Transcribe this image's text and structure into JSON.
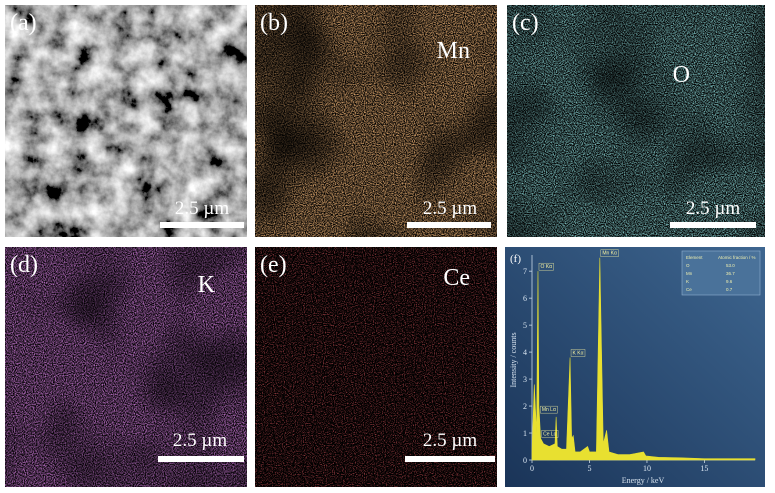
{
  "panels": [
    {
      "label": "(a)",
      "scale_bar": "2.5 µm"
    },
    {
      "label": "(b)",
      "element": "Mn",
      "scale_bar": "2.5 µm"
    },
    {
      "label": "(c)",
      "element": "O",
      "scale_bar": "2.5 µm"
    },
    {
      "label": "(d)",
      "element": "K",
      "scale_bar": "2.5 µm"
    },
    {
      "label": "(e)",
      "element": "Ce",
      "scale_bar": "2.5 µm"
    }
  ],
  "chart_data": {
    "type": "area",
    "label": "(f)",
    "x_label": "Energy / keV",
    "y_label": "Intensity / counts",
    "color": "#e8e030",
    "x": [
      0,
      0.2,
      0.4,
      0.52,
      0.6,
      0.64,
      0.75,
      1.0,
      1.5,
      2.0,
      2.1,
      2.2,
      2.6,
      3.0,
      3.31,
      3.45,
      3.59,
      3.75,
      4.2,
      4.84,
      5.0,
      5.6,
      5.9,
      6.2,
      6.49,
      6.7,
      7.5,
      8.5,
      9.7,
      9.9,
      11,
      13,
      15,
      17,
      19.4
    ],
    "values": [
      0.3,
      2.8,
      1.0,
      7.0,
      2.0,
      1.7,
      0.8,
      0.6,
      0.5,
      0.6,
      1.6,
      0.5,
      0.4,
      0.4,
      3.8,
      0.8,
      0.9,
      0.3,
      0.3,
      0.5,
      0.3,
      0.3,
      7.5,
      0.6,
      1.1,
      0.3,
      0.2,
      0.2,
      0.3,
      0.15,
      0.1,
      0.08,
      0.05,
      0.05,
      0.05
    ],
    "xlim": [
      0,
      19.4
    ],
    "ylim": [
      0,
      7.6
    ],
    "xticks": [
      0,
      5,
      10,
      15
    ],
    "yticks": [
      0,
      1,
      2,
      3,
      4,
      5,
      6,
      7
    ],
    "annotations": [
      {
        "text": "O Kα",
        "x": 0.52,
        "y": 7.0
      },
      {
        "text": "Mn Kα",
        "x": 5.9,
        "y": 7.5
      },
      {
        "text": "K Kα",
        "x": 3.31,
        "y": 3.8
      },
      {
        "text": "Mn Lα",
        "x": 0.64,
        "y": 1.7
      },
      {
        "text": "Ce Lα",
        "x": 0.75,
        "y": 0.8
      }
    ],
    "table": {
      "columns": [
        "Element",
        "Atomic fraction / %"
      ],
      "rows": [
        [
          "O",
          "53.0"
        ],
        [
          "Mn",
          "36.7"
        ],
        [
          "K",
          "9.6"
        ],
        [
          "Ce",
          "0.7"
        ]
      ]
    }
  }
}
